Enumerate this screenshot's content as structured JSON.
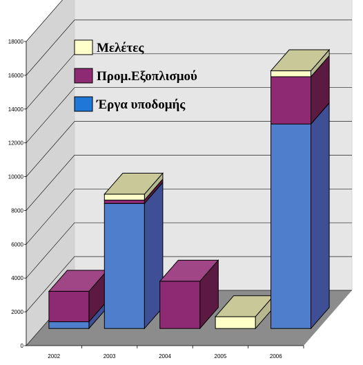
{
  "chart_data": {
    "type": "bar",
    "stacked": true,
    "three_d": true,
    "categories": [
      "2002",
      "2003",
      "2004",
      "2005",
      "2006"
    ],
    "series": [
      {
        "name": "Έργα υποδομής",
        "values": [
          400,
          7400,
          0,
          0,
          12100
        ]
      },
      {
        "name": "Προμ.Εξοπλισμού",
        "values": [
          1800,
          200,
          2800,
          0,
          2800
        ]
      },
      {
        "name": "Μελέτες",
        "values": [
          0,
          350,
          0,
          700,
          350
        ]
      }
    ],
    "y_ticks": [
      "0",
      "2000",
      "4000",
      "6000",
      "8000",
      "10000",
      "12000",
      "14000",
      "16000",
      "18000"
    ],
    "y_tick_values": [
      0,
      2000,
      4000,
      6000,
      8000,
      10000,
      12000,
      14000,
      16000,
      18000
    ],
    "ylim": [
      0,
      18000
    ],
    "grid": true,
    "legend_position": "top-left",
    "title": "",
    "xlabel": "",
    "ylabel": "",
    "colors": {
      "series_front": [
        "#4f7fcc",
        "#8e2a73",
        "#ffffc8"
      ],
      "series_side": [
        "#3e4f96",
        "#5c1942",
        "#b8b890"
      ],
      "series_top": [
        "#6f93d6",
        "#a04585",
        "#c8c899"
      ],
      "legend_swatch": [
        "#1f78d8",
        "#8e2a73",
        "#ffffcc"
      ],
      "wall": "#e6e6e6",
      "floor": "#8c8c8c",
      "grid": "#1a1a1a"
    }
  }
}
